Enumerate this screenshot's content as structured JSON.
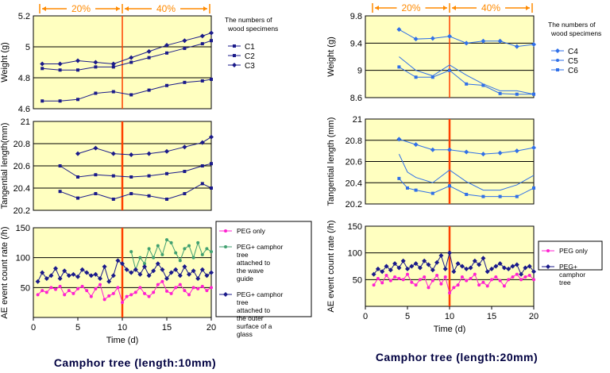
{
  "figure": {
    "left_caption": "Camphor tree (length:10mm)",
    "right_caption": "Camphor tree (length:20mm)"
  },
  "colors": {
    "panel_bg": "#ffffc0",
    "divider": "#ff4000",
    "bracket": "#ff8a00",
    "blue_dark": "#1a1a8a",
    "blue_light": "#3070e8",
    "magenta": "#ff20d0",
    "green": "#40a070"
  },
  "chart_data": [
    {
      "type": "line",
      "id": "left-weight",
      "panel": "left",
      "ylabel": "Weight (g)",
      "xlim": [
        0,
        20
      ],
      "ylim": [
        4.6,
        5.2
      ],
      "yticks": [
        "4.6",
        "4.8",
        "5",
        "5.2"
      ],
      "humidity_bands": [
        "20%",
        "40%"
      ],
      "legend": {
        "title": "The numbers of wood specimens",
        "position": "right",
        "entries": [
          "C1",
          "C2",
          "C3"
        ]
      },
      "series": [
        {
          "name": "C1",
          "color": "blue_dark",
          "marker": "square",
          "x": [
            1,
            3,
            5,
            7,
            9,
            11,
            13,
            15,
            17,
            19,
            20
          ],
          "y": [
            4.65,
            4.65,
            4.66,
            4.7,
            4.71,
            4.69,
            4.72,
            4.75,
            4.77,
            4.78,
            4.79
          ]
        },
        {
          "name": "C2",
          "color": "blue_dark",
          "marker": "square",
          "x": [
            1,
            3,
            5,
            7,
            9,
            11,
            13,
            15,
            17,
            19,
            20
          ],
          "y": [
            4.86,
            4.85,
            4.85,
            4.87,
            4.87,
            4.9,
            4.93,
            4.96,
            4.99,
            5.02,
            5.04
          ]
        },
        {
          "name": "C3",
          "color": "blue_dark",
          "marker": "diamond",
          "x": [
            1,
            3,
            5,
            7,
            9,
            11,
            13,
            15,
            17,
            19,
            20
          ],
          "y": [
            4.89,
            4.89,
            4.91,
            4.9,
            4.89,
            4.93,
            4.97,
            5.01,
            5.04,
            5.07,
            5.09
          ]
        }
      ]
    },
    {
      "type": "line",
      "id": "left-tangential",
      "panel": "left",
      "ylabel": "Tangential length(mm)",
      "xlim": [
        0,
        20
      ],
      "ylim": [
        20.2,
        21
      ],
      "yticks": [
        "20.2",
        "20.4",
        "20.6",
        "20.8",
        "21"
      ],
      "series": [
        {
          "name": "C1",
          "color": "blue_dark",
          "marker": "square",
          "x": [
            3,
            5,
            7,
            9,
            11,
            13,
            15,
            17,
            19,
            20
          ],
          "y": [
            20.37,
            20.31,
            20.35,
            20.3,
            20.35,
            20.33,
            20.3,
            20.35,
            20.44,
            20.4
          ]
        },
        {
          "name": "C2",
          "color": "blue_dark",
          "marker": "square",
          "x": [
            3,
            5,
            7,
            9,
            11,
            13,
            15,
            17,
            19,
            20
          ],
          "y": [
            20.6,
            20.5,
            20.52,
            20.51,
            20.5,
            20.51,
            20.53,
            20.55,
            20.6,
            20.62
          ]
        },
        {
          "name": "C3",
          "color": "blue_dark",
          "marker": "diamond",
          "x": [
            5,
            7,
            9,
            11,
            13,
            15,
            17,
            19,
            20
          ],
          "y": [
            20.71,
            20.76,
            20.71,
            20.7,
            20.71,
            20.73,
            20.77,
            20.81,
            20.86
          ]
        }
      ]
    },
    {
      "type": "line",
      "id": "left-ae",
      "panel": "left",
      "ylabel": "AE event count rate (/h)",
      "xlabel": "Time (d)",
      "xlim": [
        0,
        20
      ],
      "ylim": [
        0,
        150
      ],
      "xticks": [
        "0",
        "5",
        "10",
        "15",
        "20"
      ],
      "yticks": [
        "50",
        "100",
        "150"
      ],
      "legend": {
        "position": "right",
        "entries": [
          "PEG only",
          "PEG+ camphor tree attached to the wave guide",
          "PEG+ camphor tree attached to the outer surface of a glass"
        ]
      },
      "series": [
        {
          "name": "PEG only",
          "color": "magenta",
          "marker": "circle",
          "x": [
            0.5,
            1.0,
            1.5,
            2.0,
            2.5,
            3.0,
            3.5,
            4.0,
            4.5,
            5.0,
            5.5,
            6.0,
            6.5,
            7.0,
            7.5,
            8.0,
            8.5,
            9.0,
            9.5,
            10.0,
            10.5,
            11.0,
            11.5,
            12.0,
            12.5,
            13.0,
            13.5,
            14.0,
            14.5,
            15.0,
            15.5,
            16.0,
            16.5,
            17.0,
            17.5,
            18.0,
            18.5,
            19.0,
            19.5,
            20.0
          ],
          "y": [
            38,
            45,
            42,
            50,
            47,
            52,
            38,
            45,
            40,
            48,
            52,
            45,
            35,
            48,
            55,
            30,
            36,
            40,
            50,
            25,
            35,
            38,
            42,
            50,
            40,
            35,
            42,
            55,
            60,
            44,
            40,
            50,
            55,
            45,
            38,
            50,
            48,
            52,
            45,
            50
          ]
        },
        {
          "name": "PEG+ camphor tree attached to the wave guide",
          "color": "green",
          "marker": "circle",
          "x": [
            11.0,
            11.5,
            12.0,
            12.5,
            13.0,
            13.5,
            14.0,
            14.5,
            15.0,
            15.5,
            16.0,
            16.5,
            17.0,
            17.5,
            18.0,
            18.5,
            19.0,
            19.5,
            20.0
          ],
          "y": [
            110,
            80,
            100,
            90,
            115,
            100,
            120,
            105,
            130,
            125,
            108,
            95,
            115,
            120,
            100,
            125,
            105,
            115,
            110
          ]
        },
        {
          "name": "PEG+ camphor tree attached to the outer surface of a glass",
          "color": "blue_dark",
          "marker": "diamond",
          "x": [
            0.5,
            1.0,
            1.5,
            2.0,
            2.5,
            3.0,
            3.5,
            4.0,
            4.5,
            5.0,
            5.5,
            6.0,
            6.5,
            7.0,
            7.5,
            8.0,
            8.5,
            9.0,
            9.5,
            10.0,
            10.5,
            11.0,
            11.5,
            12.0,
            12.5,
            13.0,
            13.5,
            14.0,
            14.5,
            15.0,
            15.5,
            16.0,
            16.5,
            17.0,
            17.5,
            18.0,
            18.5,
            19.0,
            19.5,
            20.0
          ],
          "y": [
            60,
            75,
            65,
            70,
            82,
            65,
            78,
            70,
            72,
            68,
            80,
            75,
            70,
            72,
            65,
            85,
            60,
            70,
            95,
            90,
            80,
            75,
            80,
            72,
            85,
            70,
            78,
            90,
            80,
            65,
            75,
            80,
            70,
            85,
            72,
            78,
            65,
            80,
            70,
            75
          ]
        }
      ]
    },
    {
      "type": "line",
      "id": "right-weight",
      "panel": "right",
      "ylabel": "Weight (g)",
      "xlim": [
        0,
        20
      ],
      "ylim": [
        8.6,
        9.8
      ],
      "yticks": [
        "8.6",
        "9",
        "9.4",
        "9.8"
      ],
      "humidity_bands": [
        "20%",
        "40%"
      ],
      "legend": {
        "title": "The numbers of wood specimens",
        "position": "right",
        "entries": [
          "C4",
          "C5",
          "C6"
        ]
      },
      "series": [
        {
          "name": "C4",
          "color": "blue_light",
          "marker": "diamond",
          "x": [
            4,
            6,
            8,
            10,
            12,
            14,
            16,
            18,
            20
          ],
          "y": [
            9.6,
            9.46,
            9.47,
            9.5,
            9.4,
            9.43,
            9.43,
            9.35,
            9.38
          ]
        },
        {
          "name": "C5",
          "color": "blue_light",
          "marker": "none",
          "x": [
            4,
            6,
            8,
            10,
            12,
            14,
            16,
            18,
            20
          ],
          "y": [
            9.2,
            9.0,
            8.92,
            9.08,
            8.93,
            8.8,
            8.7,
            8.7,
            8.65
          ]
        },
        {
          "name": "C6",
          "color": "blue_light",
          "marker": "square",
          "x": [
            4,
            6,
            8,
            10,
            12,
            14,
            16,
            18,
            20
          ],
          "y": [
            9.05,
            8.9,
            8.9,
            9.0,
            8.8,
            8.78,
            8.66,
            8.65,
            8.65
          ]
        }
      ]
    },
    {
      "type": "line",
      "id": "right-tangential",
      "panel": "right",
      "ylabel": "Tangential length (mm)",
      "xlim": [
        0,
        20
      ],
      "ylim": [
        20.2,
        21
      ],
      "yticks": [
        "20.2",
        "20.4",
        "20.6",
        "20.8",
        "21"
      ],
      "series": [
        {
          "name": "C4",
          "color": "blue_light",
          "marker": "diamond",
          "x": [
            4,
            6,
            8,
            10,
            12,
            14,
            16,
            18,
            20
          ],
          "y": [
            20.81,
            20.76,
            20.71,
            20.71,
            20.69,
            20.67,
            20.68,
            20.7,
            20.73
          ]
        },
        {
          "name": "C5",
          "color": "blue_light",
          "marker": "none",
          "x": [
            4,
            5,
            6,
            8,
            10,
            12,
            14,
            16,
            18,
            20
          ],
          "y": [
            20.67,
            20.5,
            20.45,
            20.4,
            20.52,
            20.41,
            20.33,
            20.33,
            20.38,
            20.47
          ]
        },
        {
          "name": "C6",
          "color": "blue_light",
          "marker": "square",
          "x": [
            4,
            5,
            6,
            8,
            10,
            12,
            14,
            16,
            18,
            20
          ],
          "y": [
            20.44,
            20.35,
            20.33,
            20.3,
            20.37,
            20.29,
            20.27,
            20.27,
            20.27,
            20.35
          ]
        }
      ]
    },
    {
      "type": "line",
      "id": "right-ae",
      "panel": "right",
      "ylabel": "AE event count rate (/h)",
      "xlabel": "Time (d)",
      "xlim": [
        0,
        20
      ],
      "ylim": [
        0,
        150
      ],
      "xticks": [
        "0",
        "5",
        "10",
        "15",
        "20"
      ],
      "yticks": [
        "50",
        "100",
        "150"
      ],
      "legend": {
        "position": "right",
        "entries": [
          "PEG only",
          "PEG+ camphor tree"
        ]
      },
      "series": [
        {
          "name": "PEG only",
          "color": "magenta",
          "marker": "circle",
          "x": [
            1.0,
            1.5,
            2.0,
            2.5,
            3.0,
            3.5,
            4.0,
            4.5,
            5.0,
            5.5,
            6.0,
            6.5,
            7.0,
            7.5,
            8.0,
            8.5,
            9.0,
            9.5,
            10.0,
            10.5,
            11.0,
            11.5,
            12.0,
            12.5,
            13.0,
            13.5,
            14.0,
            14.5,
            15.0,
            15.5,
            16.0,
            16.5,
            17.0,
            17.5,
            18.0,
            18.5,
            19.0,
            19.5,
            20.0
          ],
          "y": [
            40,
            52,
            44,
            58,
            48,
            55,
            52,
            50,
            60,
            45,
            40,
            50,
            55,
            35,
            48,
            58,
            42,
            55,
            25,
            35,
            40,
            55,
            48,
            52,
            60,
            40,
            45,
            38,
            50,
            55,
            48,
            38,
            50,
            55,
            60,
            50,
            55,
            58,
            50
          ]
        },
        {
          "name": "PEG+ camphor tree",
          "color": "blue_dark",
          "marker": "diamond",
          "x": [
            1.0,
            1.5,
            2.0,
            2.5,
            3.0,
            3.5,
            4.0,
            4.5,
            5.0,
            5.5,
            6.0,
            6.5,
            7.0,
            7.5,
            8.0,
            8.5,
            9.0,
            9.5,
            10.0,
            10.5,
            11.0,
            11.5,
            12.0,
            12.5,
            13.0,
            13.5,
            14.0,
            14.5,
            15.0,
            15.5,
            16.0,
            16.5,
            17.0,
            17.5,
            18.0,
            18.5,
            19.0,
            19.5,
            20.0
          ],
          "y": [
            60,
            70,
            65,
            75,
            68,
            80,
            72,
            85,
            70,
            75,
            80,
            72,
            85,
            78,
            68,
            82,
            95,
            70,
            100,
            65,
            80,
            75,
            70,
            72,
            85,
            78,
            90,
            65,
            70,
            75,
            80,
            72,
            70,
            75,
            78,
            60,
            72,
            75,
            65
          ]
        }
      ]
    }
  ]
}
